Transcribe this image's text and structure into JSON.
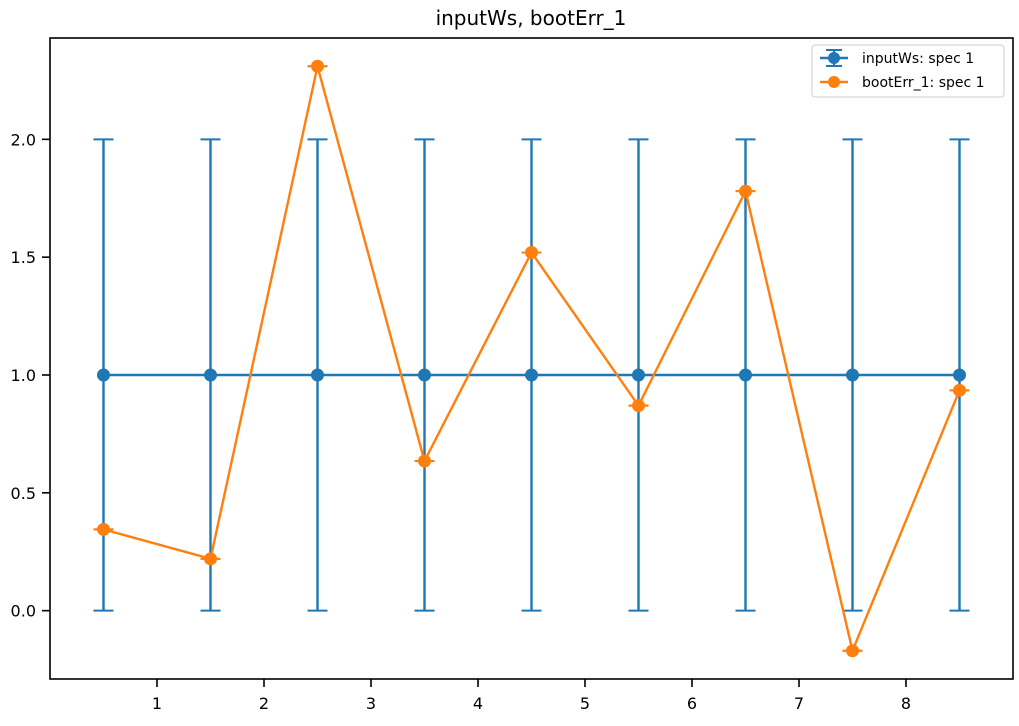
{
  "chart_data": {
    "type": "line",
    "title": "inputWs, bootErr_1",
    "xlabel": "",
    "ylabel": "",
    "xlim": [
      0.0,
      9.0
    ],
    "ylim": [
      -0.29,
      2.43
    ],
    "xticks": [
      1,
      2,
      3,
      4,
      5,
      6,
      7,
      8
    ],
    "yticks": [
      0.0,
      0.5,
      1.0,
      1.5,
      2.0
    ],
    "xtick_labels": [
      "1",
      "2",
      "3",
      "4",
      "5",
      "6",
      "7",
      "8"
    ],
    "ytick_labels": [
      "0.0",
      "0.5",
      "1.0",
      "1.5",
      "2.0"
    ],
    "grid": false,
    "legend": {
      "placement": "top-right"
    },
    "series": [
      {
        "name": "inputWs: spec 1",
        "color": "#1f77b4",
        "x": [
          0.5,
          1.5,
          2.5,
          3.5,
          4.5,
          5.5,
          6.5,
          7.5,
          8.5
        ],
        "y": [
          1.0,
          1.0,
          1.0,
          1.0,
          1.0,
          1.0,
          1.0,
          1.0,
          1.0
        ],
        "yerr": [
          1.0,
          1.0,
          1.0,
          1.0,
          1.0,
          1.0,
          1.0,
          1.0,
          1.0
        ]
      },
      {
        "name": "bootErr_1: spec 1",
        "color": "#ff7f0e",
        "x": [
          0.5,
          1.5,
          2.5,
          3.5,
          4.5,
          5.5,
          6.5,
          7.5,
          8.5
        ],
        "y": [
          0.345,
          0.22,
          2.31,
          0.635,
          1.52,
          0.87,
          1.78,
          -0.17,
          0.935
        ],
        "yerr": [
          0,
          0,
          0,
          0,
          0,
          0,
          0,
          0,
          0
        ]
      }
    ]
  }
}
